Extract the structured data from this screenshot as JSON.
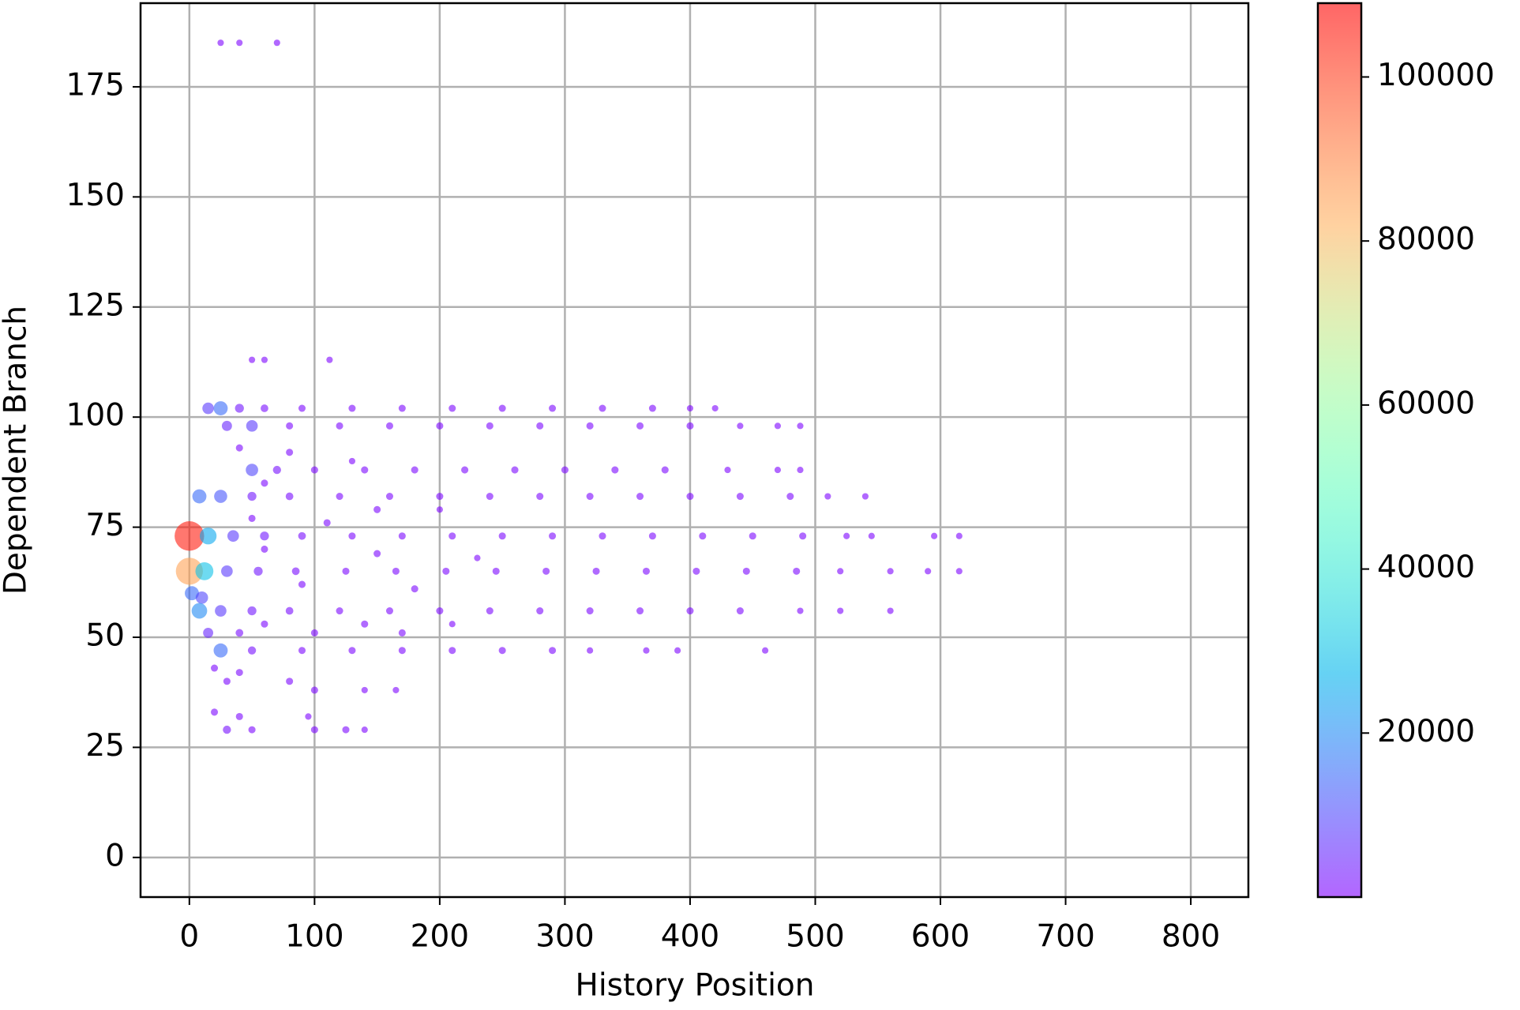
{
  "chart_data": {
    "type": "scatter",
    "xlabel": "History Position",
    "ylabel": "Dependent Branch",
    "xlim": [
      -39,
      846
    ],
    "ylim": [
      -9,
      194
    ],
    "xticks": [
      0,
      100,
      200,
      300,
      400,
      500,
      600,
      700,
      800
    ],
    "yticks": [
      0,
      25,
      50,
      75,
      100,
      125,
      150,
      175
    ],
    "grid": true,
    "colormap": "rainbow",
    "alpha": 0.6,
    "clim": [
      0,
      109000
    ],
    "cticks": [
      20000,
      40000,
      60000,
      80000,
      100000
    ],
    "x": [
      25,
      40,
      70,
      50,
      60,
      112,
      15,
      25,
      40,
      60,
      90,
      130,
      170,
      210,
      250,
      290,
      330,
      370,
      400,
      420,
      30,
      50,
      80,
      120,
      160,
      200,
      240,
      280,
      320,
      360,
      400,
      440,
      470,
      488,
      50,
      70,
      100,
      140,
      180,
      220,
      260,
      300,
      340,
      380,
      430,
      470,
      488,
      8,
      25,
      50,
      80,
      120,
      160,
      200,
      240,
      280,
      320,
      360,
      400,
      440,
      480,
      510,
      540,
      0,
      15,
      35,
      60,
      90,
      130,
      170,
      210,
      250,
      290,
      330,
      370,
      410,
      450,
      490,
      525,
      545,
      595,
      615,
      0,
      12,
      30,
      55,
      85,
      125,
      165,
      205,
      245,
      285,
      325,
      365,
      405,
      445,
      485,
      520,
      560,
      590,
      615,
      2,
      10,
      8,
      25,
      50,
      80,
      120,
      160,
      200,
      240,
      280,
      320,
      360,
      400,
      440,
      488,
      520,
      560,
      15,
      40,
      100,
      170,
      25,
      50,
      90,
      130,
      170,
      210,
      250,
      290,
      320,
      365,
      390,
      460,
      40,
      80,
      130,
      60,
      150,
      200,
      50,
      110,
      60,
      150,
      230,
      90,
      180,
      60,
      140,
      210,
      20,
      40,
      30,
      80,
      100,
      140,
      165,
      20,
      40,
      95,
      30,
      50,
      100,
      125,
      140
    ],
    "y": [
      185,
      185,
      185,
      113,
      113,
      113,
      102,
      102,
      102,
      102,
      102,
      102,
      102,
      102,
      102,
      102,
      102,
      102,
      102,
      102,
      98,
      98,
      98,
      98,
      98,
      98,
      98,
      98,
      98,
      98,
      98,
      98,
      98,
      98,
      88,
      88,
      88,
      88,
      88,
      88,
      88,
      88,
      88,
      88,
      88,
      88,
      88,
      82,
      82,
      82,
      82,
      82,
      82,
      82,
      82,
      82,
      82,
      82,
      82,
      82,
      82,
      82,
      82,
      73,
      73,
      73,
      73,
      73,
      73,
      73,
      73,
      73,
      73,
      73,
      73,
      73,
      73,
      73,
      73,
      73,
      73,
      73,
      65,
      65,
      65,
      65,
      65,
      65,
      65,
      65,
      65,
      65,
      65,
      65,
      65,
      65,
      65,
      65,
      65,
      65,
      65,
      60,
      59,
      56,
      56,
      56,
      56,
      56,
      56,
      56,
      56,
      56,
      56,
      56,
      56,
      56,
      56,
      56,
      56,
      51,
      51,
      51,
      51,
      47,
      47,
      47,
      47,
      47,
      47,
      47,
      47,
      47,
      47,
      47,
      47,
      93,
      92,
      90,
      85,
      79,
      79,
      77,
      76,
      70,
      69,
      68,
      62,
      61,
      53,
      53,
      53,
      43,
      42,
      40,
      40,
      38,
      38,
      38,
      33,
      32,
      32,
      29,
      29,
      29,
      29,
      29
    ],
    "values": [
      500,
      500,
      500,
      500,
      500,
      500,
      8000,
      15000,
      3000,
      1500,
      1000,
      1000,
      1000,
      1000,
      1000,
      1000,
      1000,
      1000,
      500,
      500,
      5000,
      8000,
      1000,
      1000,
      1000,
      1000,
      1000,
      1000,
      1000,
      1000,
      1000,
      500,
      500,
      500,
      10000,
      2000,
      1000,
      1000,
      1000,
      1000,
      1000,
      1000,
      1000,
      1000,
      500,
      500,
      500,
      15000,
      12000,
      3000,
      1500,
      1000,
      1000,
      1000,
      1000,
      1000,
      1000,
      1000,
      1000,
      1000,
      1000,
      500,
      500,
      105000,
      25000,
      8000,
      3000,
      1500,
      1000,
      1000,
      1000,
      1000,
      1000,
      1000,
      1000,
      1000,
      1000,
      1000,
      500,
      500,
      500,
      500,
      85000,
      30000,
      8000,
      3000,
      1500,
      1000,
      1000,
      1000,
      1000,
      1000,
      1000,
      1000,
      1000,
      1000,
      1000,
      500,
      500,
      500,
      500,
      15000,
      10000,
      20000,
      8000,
      3000,
      1500,
      1000,
      1000,
      1000,
      1000,
      1000,
      1000,
      1000,
      1000,
      1000,
      500,
      500,
      500,
      5000,
      1500,
      1000,
      1000,
      15000,
      2000,
      1000,
      1000,
      1000,
      1000,
      1000,
      1000,
      500,
      500,
      500,
      500,
      1000,
      1000,
      500,
      1000,
      1000,
      500,
      1000,
      1000,
      1000,
      1000,
      500,
      1000,
      1000,
      1000,
      1000,
      500,
      1000,
      1000,
      1000,
      1000,
      1000,
      500,
      500,
      1000,
      1000,
      500,
      2000,
      1000,
      1000,
      1000,
      500
    ]
  }
}
